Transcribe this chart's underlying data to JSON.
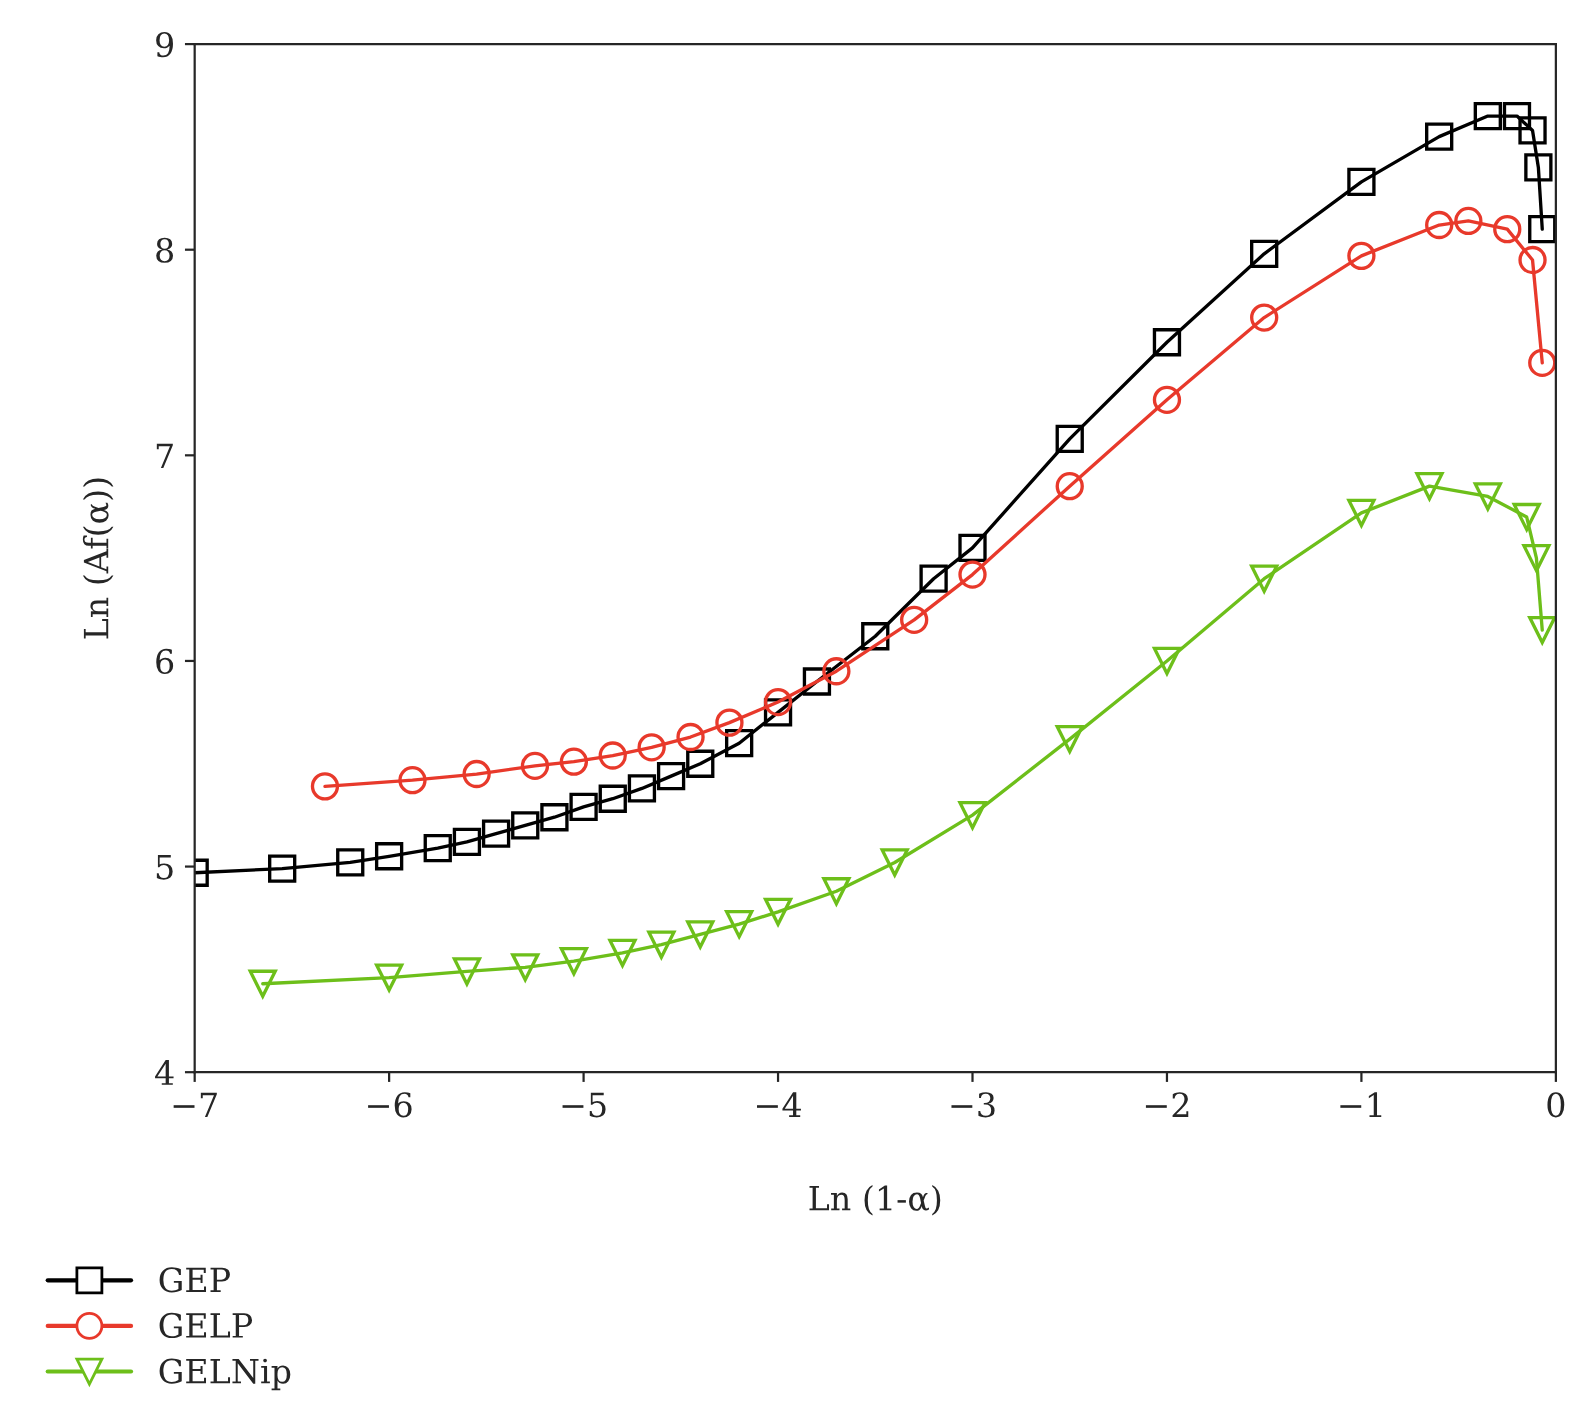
{
  "chart_data": {
    "type": "line",
    "xlabel": "Ln (1-α)",
    "ylabel": "Ln (Af(α))",
    "xlim": [
      -7,
      0
    ],
    "xticks": [
      {
        "value": -7,
        "label": "−7"
      },
      {
        "value": -6,
        "label": "−6"
      },
      {
        "value": -5,
        "label": "−5"
      },
      {
        "value": -4,
        "label": "−4"
      },
      {
        "value": -3,
        "label": "−3"
      },
      {
        "value": -2,
        "label": "−2"
      },
      {
        "value": -1,
        "label": "−1"
      },
      0
    ],
    "ylim": [
      4,
      9
    ],
    "yticks": [
      4,
      5,
      6,
      7,
      8,
      9
    ],
    "grid": false,
    "legend": "bottom",
    "series": [
      {
        "name": "GEP",
        "color": "#000000",
        "marker": "square",
        "x": [
          -7,
          -6.55,
          -6.2,
          -6.0,
          -5.75,
          -5.6,
          -5.45,
          -5.3,
          -5.15,
          -5.0,
          -4.85,
          -4.7,
          -4.55,
          -4.4,
          -4.2,
          -4.0,
          -3.8,
          -3.5,
          -3.2,
          -3.0,
          -2.5,
          -2.0,
          -1.5,
          -1.0,
          -0.6,
          -0.35,
          -0.2,
          -0.12,
          -0.09,
          -0.07
        ],
        "values": [
          4.97,
          4.99,
          5.02,
          5.05,
          5.09,
          5.12,
          5.16,
          5.2,
          5.24,
          5.29,
          5.33,
          5.38,
          5.44,
          5.5,
          5.6,
          5.75,
          5.9,
          6.12,
          6.4,
          6.55,
          7.08,
          7.55,
          7.98,
          8.33,
          8.55,
          8.65,
          8.65,
          8.58,
          8.4,
          8.1
        ]
      },
      {
        "name": "GELP",
        "color": "#e8392b",
        "marker": "circle",
        "x": [
          -6.33,
          -5.88,
          -5.55,
          -5.25,
          -5.05,
          -4.85,
          -4.65,
          -4.45,
          -4.25,
          -4.0,
          -3.7,
          -3.3,
          -3.0,
          -2.5,
          -2.0,
          -1.5,
          -1.0,
          -0.6,
          -0.45,
          -0.25,
          -0.12,
          -0.07
        ],
        "values": [
          5.39,
          5.42,
          5.45,
          5.49,
          5.51,
          5.54,
          5.58,
          5.63,
          5.7,
          5.8,
          5.95,
          6.2,
          6.42,
          6.85,
          7.27,
          7.67,
          7.97,
          8.12,
          8.14,
          8.1,
          7.95,
          7.45
        ]
      },
      {
        "name": "GELNip",
        "color": "#6dbf1a",
        "marker": "triangle",
        "x": [
          -6.65,
          -6.0,
          -5.6,
          -5.3,
          -5.05,
          -4.8,
          -4.6,
          -4.4,
          -4.2,
          -4.0,
          -3.7,
          -3.4,
          -3.0,
          -2.5,
          -2.0,
          -1.5,
          -1.0,
          -0.65,
          -0.35,
          -0.15,
          -0.1,
          -0.07
        ],
        "values": [
          4.43,
          4.46,
          4.49,
          4.51,
          4.54,
          4.58,
          4.62,
          4.67,
          4.72,
          4.78,
          4.88,
          5.02,
          5.25,
          5.62,
          6.0,
          6.4,
          6.72,
          6.85,
          6.8,
          6.7,
          6.5,
          6.15
        ]
      }
    ]
  }
}
